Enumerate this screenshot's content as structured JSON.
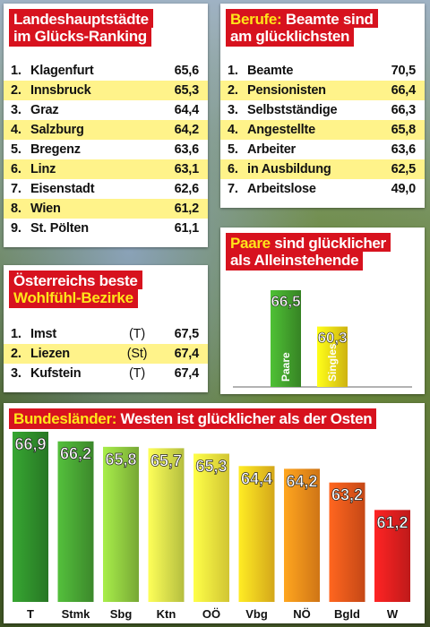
{
  "capitals": {
    "title_line1": "Landeshauptstädte",
    "title_line2": "im Glücks-Ranking",
    "rows": [
      {
        "rank": "1.",
        "name": "Klagenfurt",
        "value": "65,6"
      },
      {
        "rank": "2.",
        "name": "Innsbruck",
        "value": "65,3"
      },
      {
        "rank": "3.",
        "name": "Graz",
        "value": "64,4"
      },
      {
        "rank": "4.",
        "name": "Salzburg",
        "value": "64,2"
      },
      {
        "rank": "5.",
        "name": "Bregenz",
        "value": "63,6"
      },
      {
        "rank": "6.",
        "name": "Linz",
        "value": "63,1"
      },
      {
        "rank": "7.",
        "name": "Eisenstadt",
        "value": "62,6"
      },
      {
        "rank": "8.",
        "name": "Wien",
        "value": "61,2"
      },
      {
        "rank": "9.",
        "name": "St. Pölten",
        "value": "61,1"
      }
    ]
  },
  "professions": {
    "title_line1_highlight": "Berufe:",
    "title_line1_rest": " Beamte sind",
    "title_line2": "am glücklichsten",
    "rows": [
      {
        "rank": "1.",
        "name": "Beamte",
        "value": "70,5"
      },
      {
        "rank": "2.",
        "name": "Pensionisten",
        "value": "66,4"
      },
      {
        "rank": "3.",
        "name": "Selbstständige",
        "value": "66,3"
      },
      {
        "rank": "4.",
        "name": "Angestellte",
        "value": "65,8"
      },
      {
        "rank": "5.",
        "name": "Arbeiter",
        "value": "63,6"
      },
      {
        "rank": "6.",
        "name": "in Ausbildung",
        "value": "62,5"
      },
      {
        "rank": "7.",
        "name": "Arbeitslose",
        "value": "49,0"
      }
    ]
  },
  "districts": {
    "title_line1": "Österreichs beste",
    "title_line2": "Wohlfühl-Bezirke",
    "rows": [
      {
        "rank": "1.",
        "name": "Imst",
        "abbr": "(T)",
        "value": "67,5"
      },
      {
        "rank": "2.",
        "name": "Liezen",
        "abbr": "(St)",
        "value": "67,4"
      },
      {
        "rank": "3.",
        "name": "Kufstein",
        "abbr": "(T)",
        "value": "67,4"
      }
    ]
  },
  "chart_data": [
    {
      "type": "bar",
      "title_highlight": "Paare",
      "title_rest": " sind glücklicher",
      "title_line2": "als Alleinstehende",
      "categories": [
        "Paare",
        "Singles"
      ],
      "values": [
        66.5,
        60.3
      ],
      "value_labels": [
        "66,5",
        "60,3"
      ],
      "colors": [
        "#3f9a2a",
        "#f2d214"
      ]
    },
    {
      "type": "bar",
      "title_highlight": "Bundesländer:",
      "title_rest": " Westen ist glücklicher als der Osten",
      "categories": [
        "T",
        "Stmk",
        "Sbg",
        "Ktn",
        "OÖ",
        "Vbg",
        "NÖ",
        "Bgld",
        "W"
      ],
      "values": [
        66.9,
        66.2,
        65.8,
        65.7,
        65.3,
        64.4,
        64.2,
        63.2,
        61.2
      ],
      "value_labels": [
        "66,9",
        "66,2",
        "65,8",
        "65,7",
        "65,3",
        "64,4",
        "64,2",
        "63,2",
        "61,2"
      ],
      "colors": [
        "#2e8b2a",
        "#46a032",
        "#8cc63e",
        "#d4e04a",
        "#f6e83c",
        "#f9c51e",
        "#f38a1a",
        "#e8551a",
        "#e01e1e"
      ]
    }
  ]
}
